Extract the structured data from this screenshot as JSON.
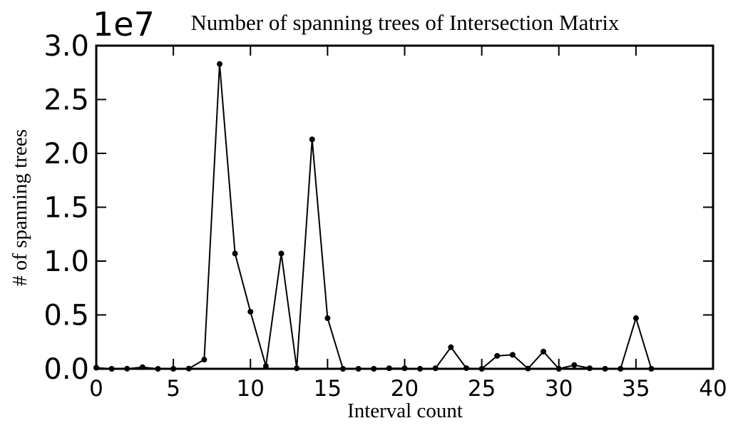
{
  "chart_data": {
    "type": "line",
    "title": "Number of spanning trees of Intersection Matrix",
    "xlabel": "Interval count",
    "ylabel": "# of spanning trees",
    "y_offset_label": "1e7",
    "y_scale": 10000000,
    "xlim": [
      0,
      40
    ],
    "ylim": [
      0,
      30000000
    ],
    "xticks": [
      0,
      5,
      10,
      15,
      20,
      25,
      30,
      35,
      40
    ],
    "xtick_labels": [
      "0",
      "5",
      "10",
      "15",
      "20",
      "25",
      "30",
      "35",
      "40"
    ],
    "yticks": [
      0,
      5000000,
      10000000,
      15000000,
      20000000,
      25000000,
      30000000
    ],
    "ytick_labels": [
      "0.0",
      "0.5",
      "1.0",
      "1.5",
      "2.0",
      "2.5",
      "3.0"
    ],
    "grid": false,
    "series": [
      {
        "x": [
          0,
          1,
          2,
          3,
          4,
          5,
          6,
          7,
          8,
          9,
          10,
          11,
          12,
          13,
          14,
          15,
          16,
          17,
          18,
          19,
          20,
          21,
          22,
          23,
          24,
          25,
          26,
          27,
          28,
          29,
          30,
          31,
          32,
          33,
          34,
          35,
          36
        ],
        "y": [
          100000,
          0,
          10000,
          150000,
          0,
          0,
          20000,
          850000,
          28300000,
          10700000,
          5300000,
          250000,
          10700000,
          50000,
          21300000,
          4700000,
          0,
          0,
          0,
          50000,
          50000,
          0,
          50000,
          2000000,
          60000,
          0,
          1200000,
          1300000,
          20000,
          1600000,
          0,
          350000,
          50000,
          0,
          0,
          4700000,
          0
        ],
        "color": "#000000"
      }
    ]
  }
}
